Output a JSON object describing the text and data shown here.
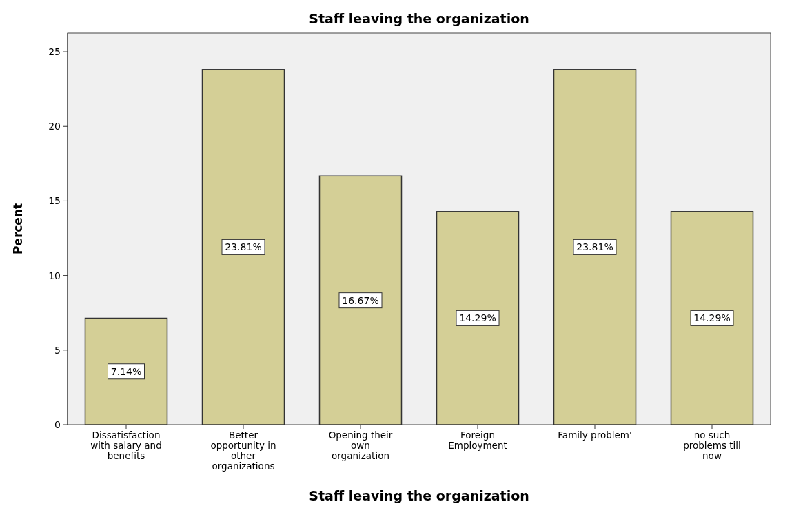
{
  "chart_data": {
    "type": "bar",
    "title": "Staff leaving the organization",
    "xlabel": "Staff leaving the organization",
    "ylabel": "Percent",
    "categories": [
      "Dissatisfaction\nwith salary and\nbenefits",
      "Better\nopportunity in\nother\norganizations",
      "Opening their\nown\norganization",
      "Foreign\nEmployment",
      "Family problem'",
      "no such\nproblems till\nnow"
    ],
    "values": [
      7.14,
      23.81,
      16.67,
      14.29,
      23.81,
      14.29
    ],
    "value_labels": [
      "7.14%",
      "23.81%",
      "16.67%",
      "14.29%",
      "23.81%",
      "14.29%"
    ],
    "color": "#d4cf96",
    "ylim": [
      0,
      26.25
    ],
    "yticks": [
      0,
      5,
      10,
      15,
      20,
      25
    ],
    "grid": false
  }
}
